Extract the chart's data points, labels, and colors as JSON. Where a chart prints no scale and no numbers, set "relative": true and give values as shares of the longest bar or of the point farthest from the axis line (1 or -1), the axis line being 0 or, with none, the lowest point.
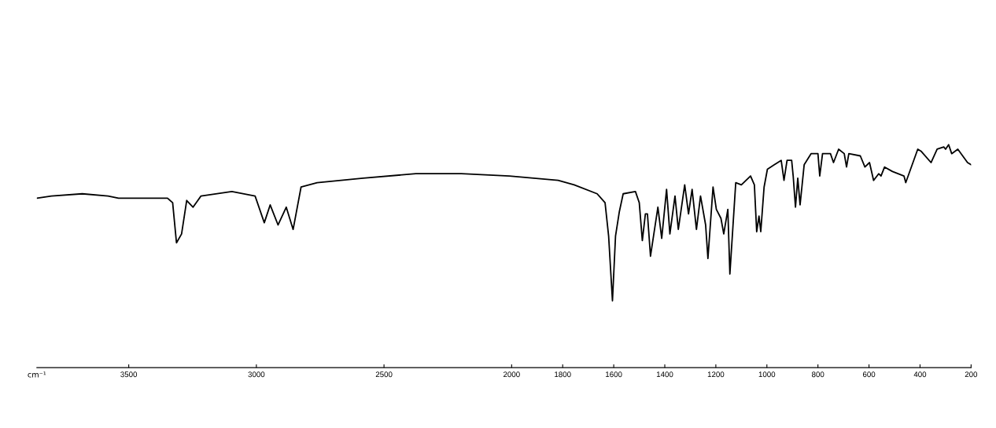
{
  "chart_data": {
    "type": "line",
    "relative": true,
    "xlabel": "cm⁻¹",
    "color": "#000000",
    "xlim": [
      3860,
      200
    ],
    "xticks": [
      3500,
      3000,
      2500,
      2000,
      1800,
      1600,
      1400,
      1200,
      1000,
      800,
      600,
      400,
      200
    ],
    "x": [
      3860,
      3803,
      3682,
      3581,
      3540,
      3348,
      3328,
      3313,
      3293,
      3273,
      3248,
      3217,
      3096,
      3005,
      2969,
      2946,
      2915,
      2883,
      2856,
      2825,
      2762,
      2582,
      2375,
      2197,
      2009,
      1818,
      1755,
      1665,
      1634,
      1620,
      1605,
      1593,
      1578,
      1563,
      1515,
      1500,
      1488,
      1476,
      1468,
      1456,
      1427,
      1412,
      1393,
      1380,
      1360,
      1347,
      1322,
      1307,
      1293,
      1276,
      1260,
      1240,
      1231,
      1211,
      1198,
      1180,
      1169,
      1153,
      1145,
      1122,
      1100,
      1064,
      1049,
      1040,
      1031,
      1024,
      1011,
      998,
      971,
      944,
      933,
      921,
      903,
      897,
      888,
      879,
      870,
      854,
      827,
      800,
      793,
      782,
      751,
      739,
      719,
      697,
      688,
      679,
      634,
      616,
      598,
      582,
      562,
      553,
      539,
      508,
      463,
      456,
      409,
      395,
      357,
      333,
      307,
      300,
      288,
      276,
      252,
      214,
      200
    ],
    "values": [
      0.76,
      0.77,
      0.78,
      0.77,
      0.76,
      0.76,
      0.74,
      0.56,
      0.6,
      0.75,
      0.72,
      0.77,
      0.79,
      0.77,
      0.65,
      0.73,
      0.64,
      0.72,
      0.62,
      0.81,
      0.83,
      0.85,
      0.87,
      0.87,
      0.86,
      0.84,
      0.82,
      0.78,
      0.74,
      0.59,
      0.3,
      0.59,
      0.7,
      0.78,
      0.79,
      0.74,
      0.57,
      0.69,
      0.69,
      0.5,
      0.72,
      0.58,
      0.8,
      0.6,
      0.77,
      0.62,
      0.82,
      0.69,
      0.8,
      0.62,
      0.77,
      0.64,
      0.49,
      0.81,
      0.71,
      0.67,
      0.6,
      0.71,
      0.42,
      0.83,
      0.82,
      0.86,
      0.82,
      0.61,
      0.68,
      0.61,
      0.81,
      0.89,
      0.91,
      0.93,
      0.84,
      0.93,
      0.93,
      0.86,
      0.72,
      0.85,
      0.73,
      0.91,
      0.96,
      0.96,
      0.86,
      0.96,
      0.96,
      0.92,
      0.98,
      0.96,
      0.9,
      0.96,
      0.95,
      0.9,
      0.92,
      0.84,
      0.87,
      0.86,
      0.9,
      0.88,
      0.86,
      0.83,
      0.98,
      0.97,
      0.92,
      0.98,
      0.99,
      0.98,
      1.0,
      0.96,
      0.98,
      0.92,
      0.91
    ]
  }
}
